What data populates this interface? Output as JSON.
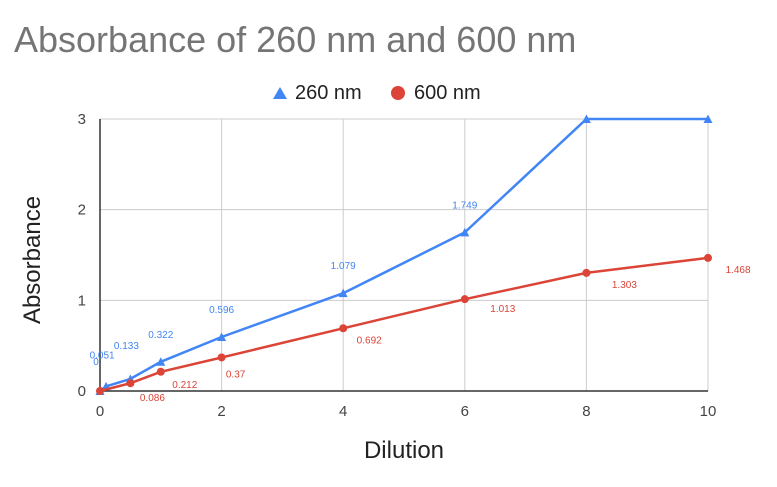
{
  "chart_data": {
    "type": "line",
    "title": "Absorbance of 260 nm and 600 nm",
    "xlabel": "Dilution",
    "ylabel": "Absorbance",
    "xlim": [
      0,
      10
    ],
    "ylim": [
      0,
      3
    ],
    "x_ticks": [
      "0",
      "2",
      "4",
      "6",
      "8",
      "10"
    ],
    "y_ticks": [
      "0",
      "1",
      "2",
      "3"
    ],
    "grid": true,
    "legend_position": "top",
    "series": [
      {
        "name": "260 nm",
        "color": "#4285f4",
        "marker": "triangle",
        "x": [
          0,
          0.1,
          0.5,
          1,
          2,
          4,
          6,
          8,
          10
        ],
        "y": [
          0.0,
          0.051,
          0.133,
          0.322,
          0.596,
          1.079,
          1.749,
          3.0,
          3.0
        ],
        "labels": [
          "0",
          "0.051",
          "0.133",
          "0.322",
          "0.596",
          "1.079",
          "1.749",
          "",
          ""
        ]
      },
      {
        "name": "600 nm",
        "color": "#db4437",
        "marker": "circle",
        "x": [
          0,
          0.5,
          1,
          2,
          4,
          6,
          8,
          10
        ],
        "y": [
          0.0,
          0.086,
          0.212,
          0.37,
          0.692,
          1.013,
          1.303,
          1.468
        ],
        "labels": [
          "",
          "0.086",
          "0.212",
          "0.37",
          "0.692",
          "1.013",
          "1.303",
          "1.468"
        ]
      }
    ]
  }
}
